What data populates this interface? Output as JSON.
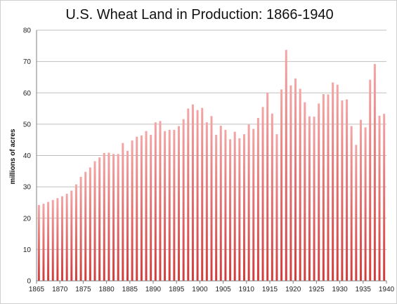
{
  "chart_data": {
    "type": "bar",
    "title": "U.S. Wheat Land in Production: 1866-1940",
    "xlabel": "",
    "ylabel": "millions of acres",
    "xlim": [
      1865,
      1940
    ],
    "ylim": [
      0,
      80
    ],
    "y_ticks": [
      0,
      10,
      20,
      30,
      40,
      50,
      60,
      70,
      80
    ],
    "x_ticks": [
      1865,
      1870,
      1875,
      1880,
      1885,
      1890,
      1895,
      1900,
      1905,
      1910,
      1915,
      1920,
      1925,
      1930,
      1935,
      1940
    ],
    "grid": "horizontal",
    "colors": {
      "bar_top": "#f4a6a6",
      "bar_bottom": "#d33a3a",
      "grid": "#bfbfbf"
    },
    "x": [
      1866,
      1867,
      1868,
      1869,
      1870,
      1871,
      1872,
      1873,
      1874,
      1875,
      1876,
      1877,
      1878,
      1879,
      1880,
      1881,
      1882,
      1883,
      1884,
      1885,
      1886,
      1887,
      1888,
      1889,
      1890,
      1891,
      1892,
      1893,
      1894,
      1895,
      1896,
      1897,
      1898,
      1899,
      1900,
      1901,
      1902,
      1903,
      1904,
      1905,
      1906,
      1907,
      1908,
      1909,
      1910,
      1911,
      1912,
      1913,
      1914,
      1915,
      1916,
      1917,
      1918,
      1919,
      1920,
      1921,
      1922,
      1923,
      1924,
      1925,
      1926,
      1927,
      1928,
      1929,
      1930,
      1931,
      1932,
      1933,
      1934,
      1935,
      1936,
      1937,
      1938,
      1939,
      1940
    ],
    "values": [
      24.2,
      24.6,
      25.2,
      25.8,
      26.4,
      27.0,
      27.8,
      28.8,
      30.8,
      33.2,
      34.8,
      36.2,
      38.2,
      39.4,
      40.8,
      40.9,
      40.5,
      40.5,
      44.0,
      41.5,
      44.8,
      46.0,
      46.4,
      47.8,
      46.6,
      50.6,
      51.0,
      47.8,
      48.2,
      48.2,
      49.4,
      51.6,
      55.0,
      56.3,
      54.5,
      55.2,
      50.6,
      52.6,
      46.6,
      49.5,
      48.2,
      45.2,
      47.6,
      45.5,
      46.8,
      49.9,
      48.5,
      52.0,
      55.5,
      60.0,
      53.4,
      46.8,
      61.1,
      73.7,
      62.4,
      64.6,
      61.3,
      57.0,
      52.5,
      52.4,
      56.6,
      59.6,
      59.5,
      63.3,
      62.6,
      57.6,
      57.9,
      49.4,
      43.4,
      51.4,
      49.0,
      64.2,
      69.2,
      52.7,
      53.3
    ]
  }
}
